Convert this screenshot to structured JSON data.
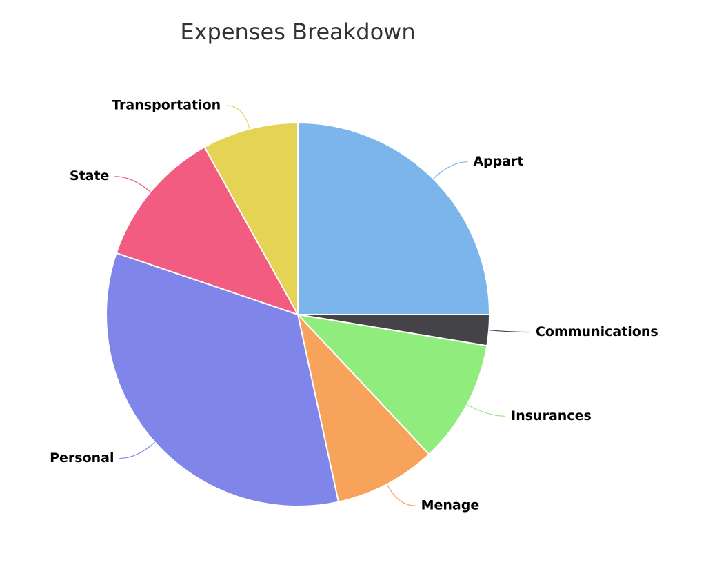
{
  "chart_data": {
    "type": "pie",
    "title": "Expenses Breakdown",
    "categories": [
      "Appart",
      "Communications",
      "Insurances",
      "Menage",
      "Personal",
      "State",
      "Transportation"
    ],
    "values": [
      25,
      2.6,
      10.4,
      8.6,
      33.6,
      11.7,
      8.1
    ],
    "colors": [
      "#7cb5ec",
      "#434348",
      "#90ed7d",
      "#f7a35c",
      "#8085e9",
      "#f15c80",
      "#e4d354"
    ]
  }
}
